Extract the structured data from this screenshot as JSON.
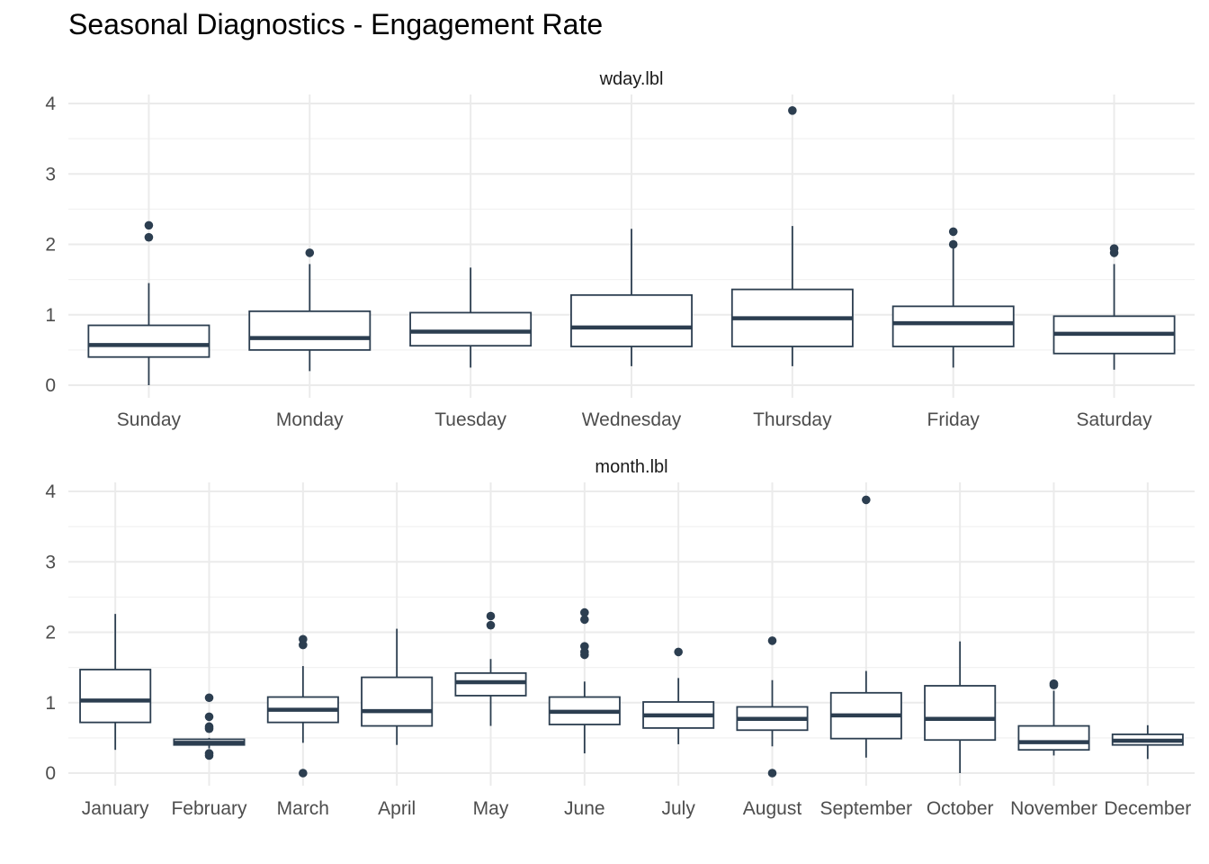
{
  "title": "Seasonal Diagnostics - Engagement Rate",
  "colors": {
    "box": "#2c3e50",
    "grid": "#ebebeb",
    "text": "#4d4d4d"
  },
  "chart_data": [
    {
      "type": "box",
      "facet": "wday.lbl",
      "ylim": [
        0,
        4
      ],
      "yticks": [
        0,
        1,
        2,
        3,
        4
      ],
      "categories": [
        "Sunday",
        "Monday",
        "Tuesday",
        "Wednesday",
        "Thursday",
        "Friday",
        "Saturday"
      ],
      "boxes": [
        {
          "category": "Sunday",
          "min": 0.0,
          "q1": 0.4,
          "median": 0.57,
          "q3": 0.85,
          "max": 1.45,
          "outliers": [
            2.1,
            2.27
          ]
        },
        {
          "category": "Monday",
          "min": 0.2,
          "q1": 0.5,
          "median": 0.67,
          "q3": 1.05,
          "max": 1.72,
          "outliers": [
            1.88
          ]
        },
        {
          "category": "Tuesday",
          "min": 0.25,
          "q1": 0.56,
          "median": 0.76,
          "q3": 1.03,
          "max": 1.67,
          "outliers": []
        },
        {
          "category": "Wednesday",
          "min": 0.27,
          "q1": 0.55,
          "median": 0.82,
          "q3": 1.28,
          "max": 2.22,
          "outliers": []
        },
        {
          "category": "Thursday",
          "min": 0.27,
          "q1": 0.55,
          "median": 0.95,
          "q3": 1.36,
          "max": 2.26,
          "outliers": [
            3.9
          ]
        },
        {
          "category": "Friday",
          "min": 0.25,
          "q1": 0.55,
          "median": 0.88,
          "q3": 1.12,
          "max": 1.97,
          "outliers": [
            2.0,
            2.18
          ]
        },
        {
          "category": "Saturday",
          "min": 0.22,
          "q1": 0.45,
          "median": 0.73,
          "q3": 0.98,
          "max": 1.72,
          "outliers": [
            1.88,
            1.94
          ]
        }
      ]
    },
    {
      "type": "box",
      "facet": "month.lbl",
      "ylim": [
        0,
        4
      ],
      "yticks": [
        0,
        1,
        2,
        3,
        4
      ],
      "categories": [
        "January",
        "February",
        "March",
        "April",
        "May",
        "June",
        "July",
        "August",
        "September",
        "October",
        "November",
        "December"
      ],
      "boxes": [
        {
          "category": "January",
          "min": 0.33,
          "q1": 0.72,
          "median": 1.03,
          "q3": 1.47,
          "max": 2.26,
          "outliers": []
        },
        {
          "category": "February",
          "min": 0.35,
          "q1": 0.4,
          "median": 0.43,
          "q3": 0.48,
          "max": 0.5,
          "outliers": [
            0.25,
            0.28,
            0.63,
            0.66,
            0.8,
            1.07
          ]
        },
        {
          "category": "March",
          "min": 0.43,
          "q1": 0.72,
          "median": 0.9,
          "q3": 1.08,
          "max": 1.52,
          "outliers": [
            0.0,
            1.82,
            1.9
          ]
        },
        {
          "category": "April",
          "min": 0.4,
          "q1": 0.67,
          "median": 0.88,
          "q3": 1.36,
          "max": 2.05,
          "outliers": []
        },
        {
          "category": "May",
          "min": 0.67,
          "q1": 1.1,
          "median": 1.29,
          "q3": 1.42,
          "max": 1.62,
          "outliers": [
            2.1,
            2.23
          ]
        },
        {
          "category": "June",
          "min": 0.28,
          "q1": 0.69,
          "median": 0.87,
          "q3": 1.08,
          "max": 1.3,
          "outliers": [
            1.68,
            1.72,
            1.8,
            2.18,
            2.28
          ]
        },
        {
          "category": "July",
          "min": 0.41,
          "q1": 0.64,
          "median": 0.82,
          "q3": 1.01,
          "max": 1.35,
          "outliers": [
            1.72
          ]
        },
        {
          "category": "August",
          "min": 0.38,
          "q1": 0.61,
          "median": 0.77,
          "q3": 0.94,
          "max": 1.32,
          "outliers": [
            0.0,
            1.88
          ]
        },
        {
          "category": "September",
          "min": 0.22,
          "q1": 0.49,
          "median": 0.82,
          "q3": 1.14,
          "max": 1.45,
          "outliers": [
            3.88
          ]
        },
        {
          "category": "October",
          "min": 0.0,
          "q1": 0.47,
          "median": 0.77,
          "q3": 1.24,
          "max": 1.87,
          "outliers": []
        },
        {
          "category": "November",
          "min": 0.25,
          "q1": 0.33,
          "median": 0.44,
          "q3": 0.67,
          "max": 1.17,
          "outliers": [
            1.25,
            1.27
          ]
        },
        {
          "category": "December",
          "min": 0.2,
          "q1": 0.4,
          "median": 0.46,
          "q3": 0.55,
          "max": 0.68,
          "outliers": []
        }
      ]
    }
  ]
}
